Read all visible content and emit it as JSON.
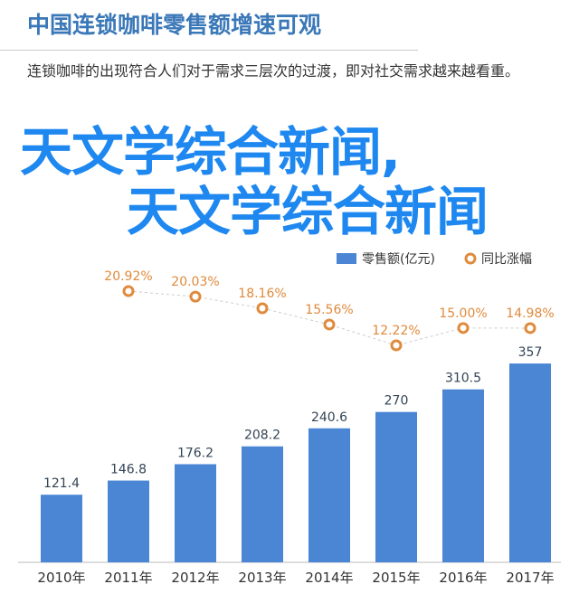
{
  "header": {
    "title": "中国连锁咖啡零售额增速可观",
    "subtitle": "连锁咖啡的出现符合人们对于需求三层次的过渡，即对社交需求越来越看重。"
  },
  "overlay": {
    "line1": "天文学综合新闻,",
    "line2": "天文学综合新闻"
  },
  "colors": {
    "bar": "#4a86d4",
    "line": "#e08a3c",
    "title": "#3b78b8",
    "overlay": "#1e88f0"
  },
  "chart_data": {
    "type": "bar+line",
    "categories": [
      "2010年",
      "2011年",
      "2012年",
      "2013年",
      "2014年",
      "2015年",
      "2016年",
      "2017年"
    ],
    "series": [
      {
        "name": "零售额(亿元)",
        "type": "bar",
        "values": [
          121.4,
          146.8,
          176.2,
          208.2,
          240.6,
          270,
          310.5,
          357
        ]
      },
      {
        "name": "同比涨幅",
        "type": "line",
        "values": [
          null,
          20.92,
          20.03,
          18.16,
          15.56,
          12.22,
          15.0,
          14.98
        ],
        "labels": [
          "",
          "20.92%",
          "20.03%",
          "18.16%",
          "15.56%",
          "12.22%",
          "15.00%",
          "14.98%"
        ]
      }
    ],
    "legend_position": "top-left"
  }
}
